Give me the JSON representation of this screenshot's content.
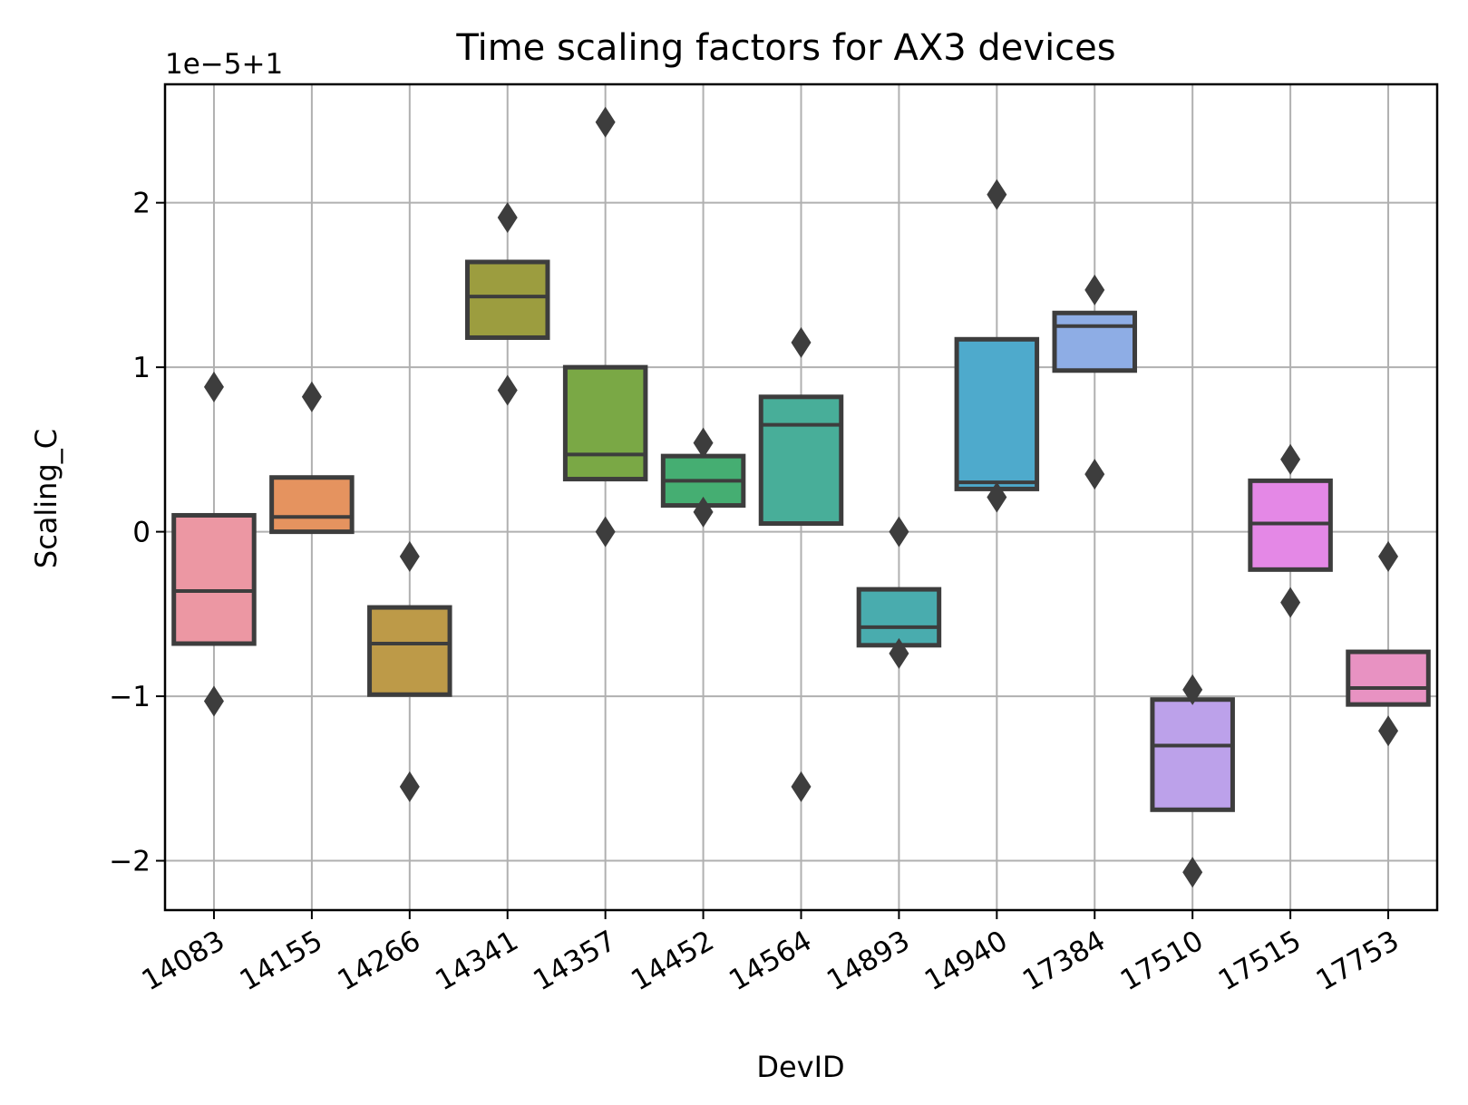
{
  "chart_data": {
    "type": "boxen",
    "title": "Time scaling factors for AX3 devices",
    "xlabel": "DevID",
    "ylabel": "Scaling_C",
    "y_offset_label": "1e−5+1",
    "ylim": [
      -2.3,
      2.72
    ],
    "yticks": [
      -2,
      -1,
      0,
      1,
      2
    ],
    "ytick_labels": [
      "−2",
      "−1",
      "0",
      "1",
      "2"
    ],
    "grid": true,
    "categories": [
      "14083",
      "14155",
      "14266",
      "14341",
      "14357",
      "14452",
      "14564",
      "14893",
      "14940",
      "17384",
      "17510",
      "17515",
      "17753"
    ],
    "boxes": [
      {
        "q1": -0.68,
        "median": -0.36,
        "q3": 0.1,
        "outliers": [
          0.88,
          -1.03
        ],
        "color": "#ec97a3"
      },
      {
        "q1": 0.0,
        "median": 0.09,
        "q3": 0.33,
        "outliers": [
          0.82
        ],
        "color": "#e5935f"
      },
      {
        "q1": -0.99,
        "median": -0.68,
        "q3": -0.46,
        "outliers": [
          -0.15,
          -1.55
        ],
        "color": "#bd9a48"
      },
      {
        "q1": 1.18,
        "median": 1.43,
        "q3": 1.64,
        "outliers": [
          1.91,
          0.86
        ],
        "color": "#9c9d3f"
      },
      {
        "q1": 0.32,
        "median": 0.47,
        "q3": 1.0,
        "outliers": [
          2.49,
          0.0
        ],
        "color": "#7aa845"
      },
      {
        "q1": 0.16,
        "median": 0.31,
        "q3": 0.46,
        "outliers": [
          0.54,
          0.12
        ],
        "color": "#45ae72"
      },
      {
        "q1": 0.05,
        "median": 0.65,
        "q3": 0.82,
        "outliers": [
          1.15,
          -1.55
        ],
        "color": "#48ae99"
      },
      {
        "q1": -0.69,
        "median": -0.58,
        "q3": -0.35,
        "outliers": [
          0.0,
          -0.74
        ],
        "color": "#49acae"
      },
      {
        "q1": 0.26,
        "median": 0.3,
        "q3": 1.17,
        "outliers": [
          2.05,
          0.21
        ],
        "color": "#4eaacc"
      },
      {
        "q1": 0.98,
        "median": 1.25,
        "q3": 1.33,
        "outliers": [
          1.47,
          0.35
        ],
        "color": "#8eade5"
      },
      {
        "q1": -1.69,
        "median": -1.3,
        "q3": -1.02,
        "outliers": [
          -0.96,
          -2.07
        ],
        "color": "#bca1ea"
      },
      {
        "q1": -0.23,
        "median": 0.05,
        "q3": 0.31,
        "outliers": [
          0.44,
          -0.43
        ],
        "color": "#e488e6"
      },
      {
        "q1": -1.05,
        "median": -0.95,
        "q3": -0.73,
        "outliers": [
          -0.15,
          -1.21
        ],
        "color": "#e892c2"
      }
    ],
    "style": {
      "edge_color": "#3d3d3d",
      "grid_color": "#b0b0b0"
    }
  }
}
